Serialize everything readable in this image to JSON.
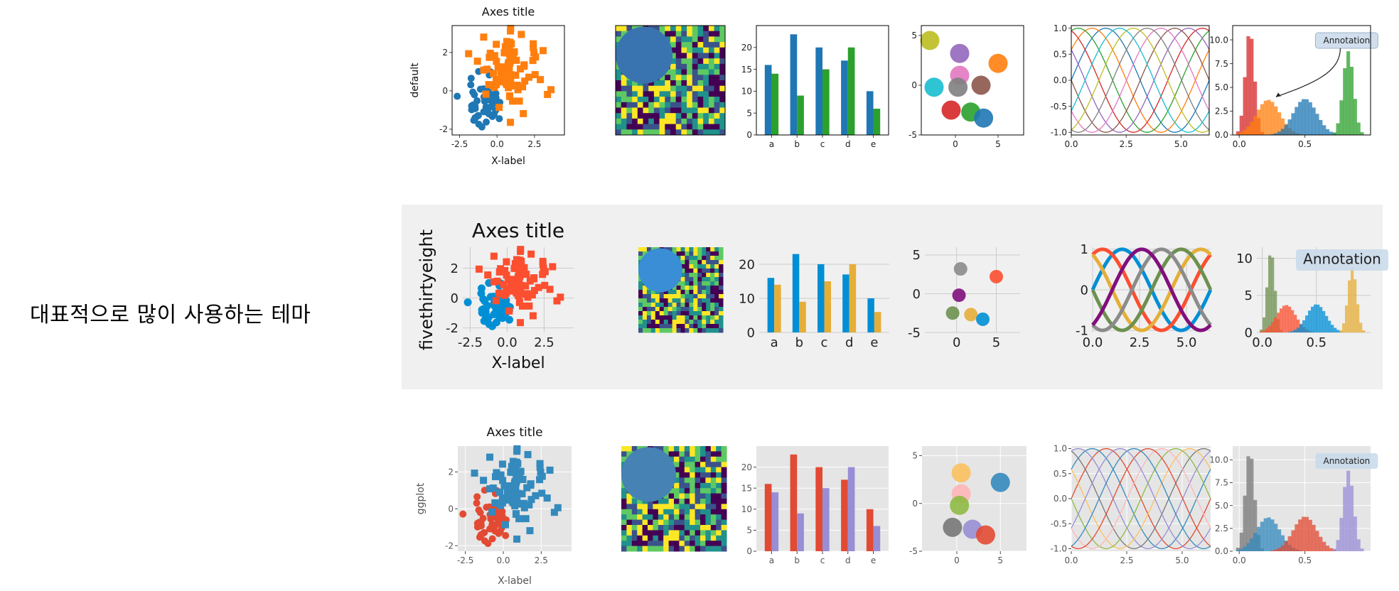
{
  "caption": "대표적으로 많이 사용하는 테마",
  "rows": [
    {
      "style": "default",
      "ylabel": "default",
      "title": "Axes title",
      "xlabel": "X-label",
      "annotation": "Annotation"
    },
    {
      "style": "fivethirtyeight",
      "ylabel": "fivethirtyeight",
      "title": "Axes title",
      "xlabel": "X-label",
      "annotation": "Annotation"
    },
    {
      "style": "ggplot",
      "ylabel": "ggplot",
      "title": "Axes title",
      "xlabel": "X-label",
      "annotation": "Annotation"
    }
  ],
  "palettes": {
    "default": [
      "#1f77b4",
      "#ff7f0e",
      "#2ca02c",
      "#d62728",
      "#9467bd",
      "#8c564b",
      "#e377c2",
      "#7f7f7f",
      "#bcbd22",
      "#17becf"
    ],
    "fivethirtyeight": [
      "#008fd5",
      "#fc4f30",
      "#e5ae38",
      "#6d904f",
      "#8b8b8b",
      "#810f7c"
    ],
    "ggplot": [
      "#E24A33",
      "#348ABD",
      "#988ED5",
      "#777777",
      "#FBC15E",
      "#8EBA42",
      "#FFB5B8"
    ]
  },
  "chart_data": [
    {
      "type": "scatter",
      "title": "Axes title",
      "xlabel": "X-label",
      "xlim": [
        -3,
        4.5
      ],
      "ylim": [
        -2.3,
        3.4
      ],
      "xticks": [
        -2.5,
        0.0,
        2.5
      ],
      "yticks": [
        -2,
        0,
        2
      ],
      "series": [
        {
          "marker": "circle",
          "center": [
            -0.8,
            -0.6
          ],
          "spread": [
            0.75,
            0.6
          ],
          "n": 55
        },
        {
          "marker": "square",
          "center": [
            0.8,
            1.0
          ],
          "spread": [
            1.0,
            0.9
          ],
          "n": 85
        }
      ]
    },
    {
      "type": "heatmap",
      "rows": 20,
      "cols": 20,
      "circle_label": "filled circle overlay"
    },
    {
      "type": "bar",
      "categories": [
        "a",
        "b",
        "c",
        "d",
        "e"
      ],
      "ylim": [
        0,
        25
      ],
      "yticks": [
        0,
        5,
        10,
        15,
        20
      ],
      "yticks_538": [
        0,
        10,
        20
      ],
      "series": [
        {
          "values": [
            16,
            23,
            20,
            17,
            10
          ]
        },
        {
          "values": [
            14,
            9,
            15,
            20,
            6
          ]
        }
      ]
    },
    {
      "type": "scatter",
      "xlim": [
        -4,
        8
      ],
      "ylim": [
        -5,
        6
      ],
      "xticks": [
        0,
        5
      ],
      "yticks": [
        -5,
        0,
        5
      ],
      "points": [
        [
          -3,
          4.5
        ],
        [
          0.5,
          3.2
        ],
        [
          5,
          2.2
        ],
        [
          0.5,
          1.0
        ],
        [
          -2.5,
          -0.2
        ],
        [
          0.3,
          -0.2
        ],
        [
          3,
          0
        ],
        [
          -0.5,
          -2.5
        ],
        [
          1.8,
          -2.7
        ],
        [
          3.3,
          -3.3
        ]
      ]
    },
    {
      "type": "line",
      "xlim": [
        0,
        6.283
      ],
      "ylim": [
        -1.05,
        1.05
      ],
      "xticks": [
        0.0,
        2.5,
        5.0
      ],
      "yticks": [
        -1.0,
        -0.5,
        0.0,
        0.5,
        1.0
      ],
      "yticks_538": [
        -1,
        0,
        1
      ],
      "n_series": 10
    },
    {
      "type": "histogram",
      "xlim": [
        -0.05,
        1.0
      ],
      "ylim": [
        0,
        11.5
      ],
      "xticks": [
        0.0,
        0.5
      ],
      "yticks": [
        0.0,
        2.5,
        5.0,
        7.5,
        10.0
      ],
      "yticks_538": [
        0,
        5,
        10
      ],
      "peaks": [
        {
          "center": 0.08,
          "height": 11
        },
        {
          "center": 0.22,
          "height": 3.7
        },
        {
          "center": 0.5,
          "height": 3.8
        },
        {
          "center": 0.83,
          "height": 8.8
        }
      ]
    }
  ]
}
